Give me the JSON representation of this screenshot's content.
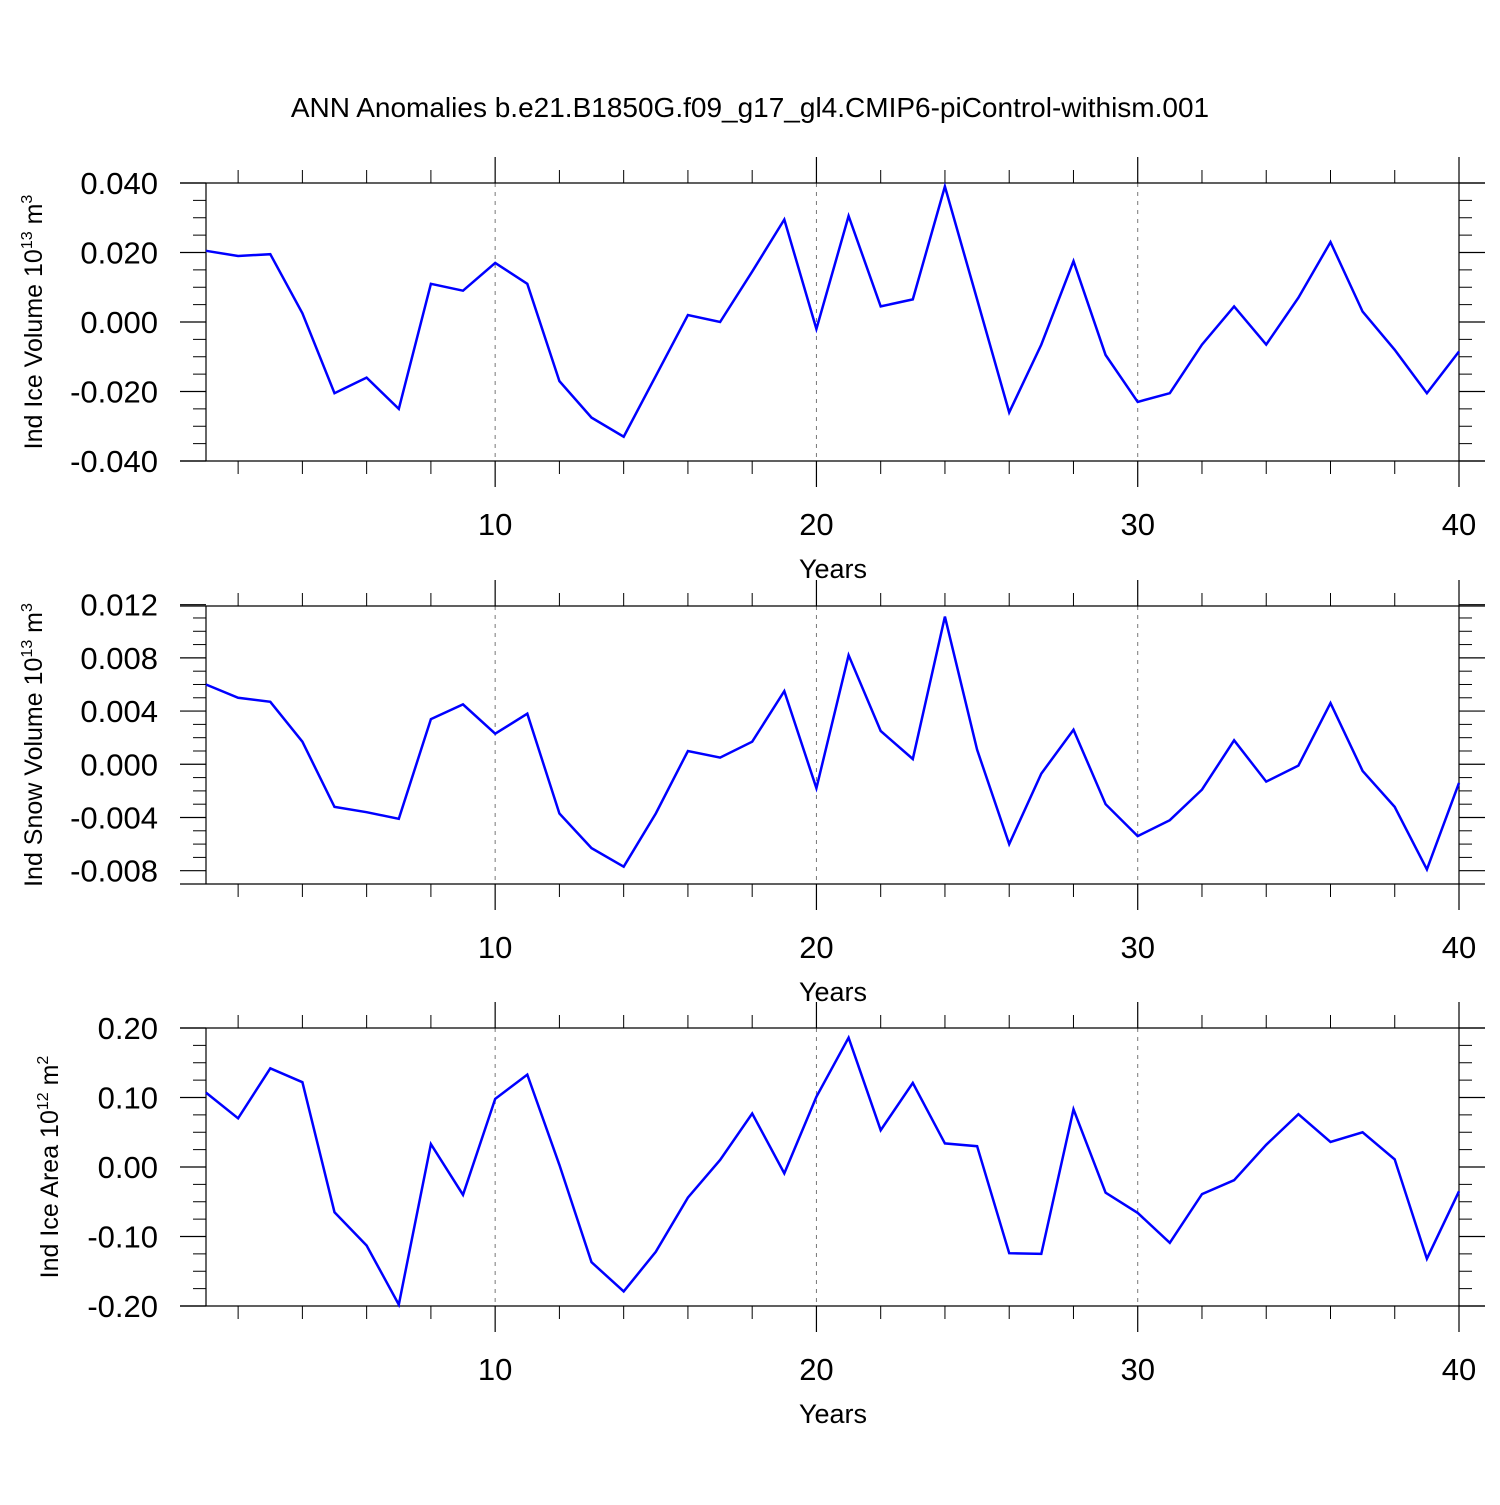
{
  "title": "ANN Anomalies b.e21.B1850G.f09_g17_gl4.CMIP6-piControl-withism.001",
  "series_color": "#0000ff",
  "chart_data": [
    {
      "type": "line",
      "ylabel": "Ind Ice Volume 10",
      "ylabel_exp": "13",
      "ylabel_unit": " m",
      "ylabel_unit_exp": "3",
      "xlabel": "Years",
      "xlim": [
        1,
        40
      ],
      "ylim": [
        -0.04,
        0.04
      ],
      "xticks": [
        10,
        20,
        30,
        40
      ],
      "yticks": [
        -0.04,
        -0.02,
        0.0,
        0.02,
        0.04
      ],
      "ytick_labels": [
        "-0.040",
        "-0.020",
        "0.000",
        "0.020",
        "0.040"
      ],
      "grid": "vertical dashed at major x ticks",
      "x": [
        1,
        2,
        3,
        4,
        5,
        6,
        7,
        8,
        9,
        10,
        11,
        12,
        13,
        14,
        15,
        16,
        17,
        18,
        19,
        20,
        21,
        22,
        23,
        24,
        25,
        26,
        27,
        28,
        29,
        30,
        31,
        32,
        33,
        34,
        35,
        36,
        37,
        38,
        39,
        40
      ],
      "values": [
        0.0205,
        0.019,
        0.0195,
        0.0025,
        -0.0205,
        -0.016,
        -0.025,
        0.011,
        0.009,
        0.017,
        0.011,
        -0.017,
        -0.0275,
        -0.033,
        -0.0155,
        0.002,
        0.0,
        0.0145,
        0.0295,
        -0.002,
        0.0305,
        0.0045,
        0.0065,
        0.039,
        0.0065,
        -0.026,
        -0.0065,
        0.0175,
        -0.0095,
        -0.023,
        -0.0205,
        -0.0065,
        0.0045,
        -0.0065,
        0.007,
        0.023,
        0.003,
        -0.008,
        -0.0205,
        -0.0085
      ]
    },
    {
      "type": "line",
      "ylabel": "Ind Snow Volume 10",
      "ylabel_exp": "13",
      "ylabel_unit": " m",
      "ylabel_unit_exp": "3",
      "xlabel": "Years",
      "xlim": [
        1,
        40
      ],
      "ylim": [
        -0.009,
        0.0119
      ],
      "xticks": [
        10,
        20,
        30,
        40
      ],
      "yticks": [
        -0.008,
        -0.004,
        0.0,
        0.004,
        0.008,
        0.012
      ],
      "ytick_labels": [
        "-0.008",
        "-0.004",
        "0.000",
        "0.004",
        "0.008",
        "0.012"
      ],
      "grid": "vertical dashed at major x ticks",
      "x": [
        1,
        2,
        3,
        4,
        5,
        6,
        7,
        8,
        9,
        10,
        11,
        12,
        13,
        14,
        15,
        16,
        17,
        18,
        19,
        20,
        21,
        22,
        23,
        24,
        25,
        26,
        27,
        28,
        29,
        30,
        31,
        32,
        33,
        34,
        35,
        36,
        37,
        38,
        39,
        40
      ],
      "values": [
        0.006,
        0.005,
        0.0047,
        0.0017,
        -0.0032,
        -0.0036,
        -0.0041,
        0.0034,
        0.0045,
        0.0023,
        0.0038,
        -0.0037,
        -0.0063,
        -0.0077,
        -0.0037,
        0.001,
        0.0005,
        0.0017,
        0.0055,
        -0.0018,
        0.0082,
        0.0025,
        0.0004,
        0.0111,
        0.0011,
        -0.006,
        -0.0007,
        0.0026,
        -0.003,
        -0.0054,
        -0.0042,
        -0.0019,
        0.0018,
        -0.0013,
        -0.0001,
        0.0046,
        -0.0005,
        -0.0032,
        -0.0079,
        -0.0014
      ]
    },
    {
      "type": "line",
      "ylabel": "Ind Ice Area 10",
      "ylabel_exp": "12",
      "ylabel_unit": " m",
      "ylabel_unit_exp": "2",
      "xlabel": "Years",
      "xlim": [
        1,
        40
      ],
      "ylim": [
        -0.2,
        0.2
      ],
      "xticks": [
        10,
        20,
        30,
        40
      ],
      "yticks": [
        -0.2,
        -0.1,
        0.0,
        0.1,
        0.2
      ],
      "ytick_labels": [
        "-0.20",
        "-0.10",
        "0.00",
        "0.10",
        "0.20"
      ],
      "grid": "vertical dashed at major x ticks",
      "x": [
        1,
        2,
        3,
        4,
        5,
        6,
        7,
        8,
        9,
        10,
        11,
        12,
        13,
        14,
        15,
        16,
        17,
        18,
        19,
        20,
        21,
        22,
        23,
        24,
        25,
        26,
        27,
        28,
        29,
        30,
        31,
        32,
        33,
        34,
        35,
        36,
        37,
        38,
        39,
        40
      ],
      "values": [
        0.107,
        0.07,
        0.142,
        0.122,
        -0.065,
        -0.113,
        -0.198,
        0.033,
        -0.04,
        0.098,
        0.133,
        0.003,
        -0.137,
        -0.179,
        -0.122,
        -0.044,
        0.01,
        0.077,
        -0.009,
        0.101,
        0.186,
        0.053,
        0.121,
        0.034,
        0.03,
        -0.124,
        -0.125,
        0.083,
        -0.037,
        -0.066,
        -0.109,
        -0.039,
        -0.019,
        0.032,
        0.076,
        0.036,
        0.05,
        0.011,
        -0.132,
        -0.035
      ]
    }
  ]
}
